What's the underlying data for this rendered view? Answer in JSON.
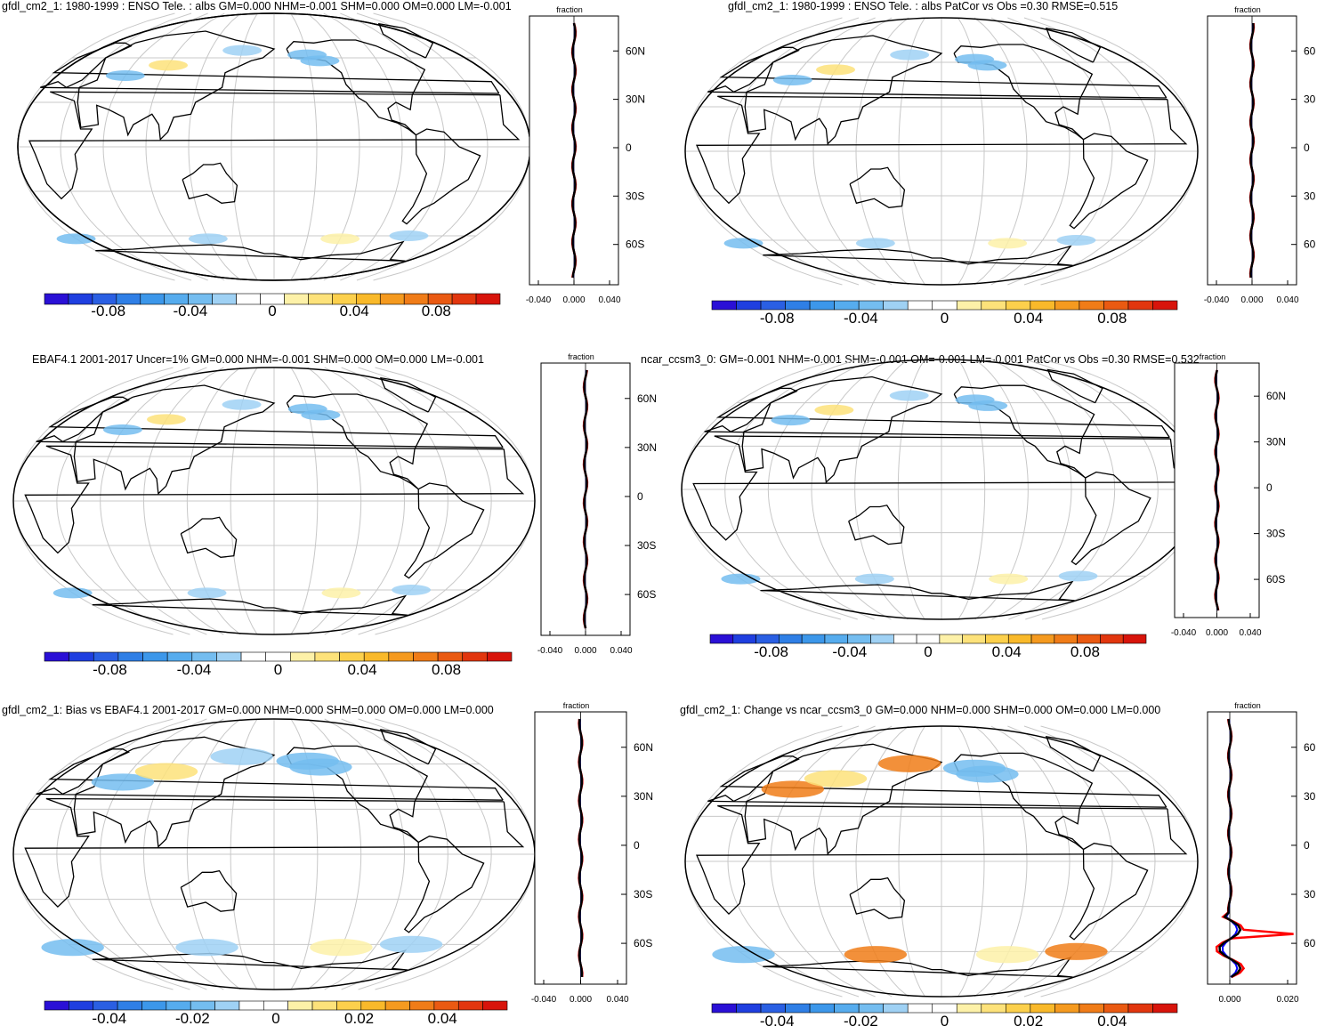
{
  "panels": [
    {
      "id": "p1",
      "title": "gfdl_cm2_1: 1980-1999 : ENSO Tele. : albs GM=0.000 NHM=-0.001 SHM=0.000 OM=0.000 LM=-0.001",
      "profile_label": "fraction",
      "profile_lat_ticks": [
        "60N",
        "30N",
        "0",
        "30S",
        "60S"
      ],
      "profile_x_ticks": [
        "-0.040",
        "0.000",
        "0.040"
      ],
      "colorbar_labels": [
        "-0.08",
        "-0.04",
        "0",
        "0.04",
        "0.08"
      ],
      "features": [
        "light-blue positive-feedback patches over Siberia and Alaska",
        "light-blue band off Antarctica"
      ]
    },
    {
      "id": "p2",
      "title": "gfdl_cm2_1: 1980-1999 : ENSO Tele. : albs PatCor vs Obs =0.30 RMSE=0.515",
      "profile_label": "fraction",
      "profile_lat_ticks": [
        "60",
        "30",
        "0",
        "30",
        "60"
      ],
      "profile_x_ticks": [
        "-0.040",
        "0.000",
        "0.040"
      ],
      "colorbar_labels": [
        "-0.08",
        "-0.04",
        "0",
        "0.04",
        "0.08"
      ]
    },
    {
      "id": "p3",
      "title": "EBAF4.1 2001-2017 Uncer=1% GM=0.000 NHM=-0.001 SHM=0.000 OM=0.000 LM=-0.001",
      "profile_label": "fraction",
      "profile_lat_ticks": [
        "60N",
        "30N",
        "0",
        "30S",
        "60S"
      ],
      "profile_x_ticks": [
        "-0.040",
        "0.000",
        "0.040"
      ],
      "colorbar_labels": [
        "-0.08",
        "-0.04",
        "0",
        "0.04",
        "0.08"
      ]
    },
    {
      "id": "p4",
      "title": "ncar_ccsm3_0: GM=-0.001 NHM=-0.001 SHM=-0.001 OM=-0.001 LM=-0.001 PatCor vs Obs =0.30 RMSE=0.532",
      "profile_label": "fraction",
      "profile_lat_ticks": [
        "60N",
        "30N",
        "0",
        "30S",
        "60S"
      ],
      "profile_x_ticks": [
        "-0.040",
        "0.000",
        "0.040"
      ],
      "colorbar_labels": [
        "-0.08",
        "-0.04",
        "0",
        "0.04",
        "0.08"
      ]
    },
    {
      "id": "p5",
      "title": "gfdl_cm2_1: Bias vs EBAF4.1 2001-2017 GM=0.000 NHM=0.000 SHM=0.000 OM=0.000 LM=0.000",
      "profile_label": "fraction",
      "profile_lat_ticks": [
        "60N",
        "30N",
        "0",
        "30S",
        "60S"
      ],
      "profile_x_ticks": [
        "-0.040",
        "0.000",
        "0.040"
      ],
      "colorbar_labels": [
        "-0.04",
        "-0.02",
        "0",
        "0.02",
        "0.04"
      ]
    },
    {
      "id": "p6",
      "title": "gfdl_cm2_1: Change vs ncar_ccsm3_0 GM=0.000 NHM=0.000 SHM=0.000 OM=0.000 LM=0.000",
      "profile_label": "fraction",
      "profile_lat_ticks": [
        "60",
        "30",
        "0",
        "30",
        "60"
      ],
      "profile_x_ticks": [
        "0.000",
        "0.020"
      ],
      "colorbar_labels": [
        "-0.04",
        "-0.02",
        "0",
        "0.02",
        "0.04"
      ]
    }
  ],
  "colors": {
    "colorbar": [
      "#2a10d6",
      "#1f3fe0",
      "#2a5fe3",
      "#2f7fe6",
      "#3c97ea",
      "#56acee",
      "#74bdf0",
      "#9fd1f4",
      "#ffffff",
      "#ffffff",
      "#fdf1a8",
      "#fde27a",
      "#fcd04c",
      "#f9b92a",
      "#f59a1f",
      "#f07c18",
      "#ea5a12",
      "#e2360e",
      "#d8140b"
    ],
    "land_outline": "#000000",
    "grid": "#c8c8c8",
    "zonal_model": "#ff0000",
    "zonal_obs": "#0000ff",
    "zonal_mean": "#000000"
  }
}
